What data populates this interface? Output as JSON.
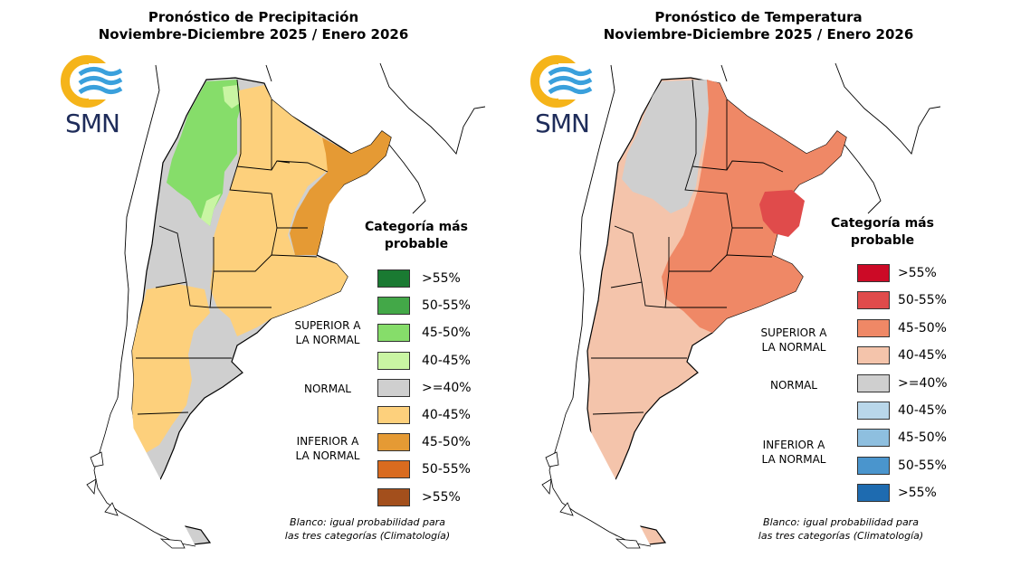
{
  "panels": [
    {
      "id": "precip",
      "title_line1": "Pronóstico de Precipitación",
      "title_line2": "Noviembre-Diciembre 2025 / Enero 2026",
      "logo_text": "SMN",
      "legend": {
        "title_line1": "Categoría más",
        "title_line2": "probable",
        "superior": [
          "SUPERIOR A",
          "LA NORMAL"
        ],
        "normal": "NORMAL",
        "inferior": [
          "INFERIOR A",
          "LA NORMAL"
        ],
        "items": [
          {
            "label": ">55%",
            "color": "#1a7a32"
          },
          {
            "label": "50-55%",
            "color": "#43a848"
          },
          {
            "label": "45-50%",
            "color": "#86dd6a"
          },
          {
            "label": "40-45%",
            "color": "#c9f5a3"
          },
          {
            "label": ">=40%",
            "color": "#cfcfcf"
          },
          {
            "label": "40-45%",
            "color": "#fdd07c"
          },
          {
            "label": "45-50%",
            "color": "#e59a34"
          },
          {
            "label": "50-55%",
            "color": "#d96b1f"
          },
          {
            "label": ">55%",
            "color": "#a34f1c"
          }
        ]
      },
      "note_line1": "Blanco: igual probabilidad para",
      "note_line2": "las tres categorías (Climatología)"
    },
    {
      "id": "temp",
      "title_line1": "Pronóstico de Temperatura",
      "title_line2": "Noviembre-Diciembre 2025 / Enero 2026",
      "logo_text": "SMN",
      "legend": {
        "title_line1": "Categoría más",
        "title_line2": "probable",
        "superior": [
          "SUPERIOR A",
          "LA NORMAL"
        ],
        "normal": "NORMAL",
        "inferior": [
          "INFERIOR A",
          "LA NORMAL"
        ],
        "items": [
          {
            "label": ">55%",
            "color": "#cc0a26"
          },
          {
            "label": "50-55%",
            "color": "#e04b4b"
          },
          {
            "label": "45-50%",
            "color": "#ef8866"
          },
          {
            "label": "40-45%",
            "color": "#f4c4ab"
          },
          {
            "label": ">=40%",
            "color": "#cfcfcf"
          },
          {
            "label": "40-45%",
            "color": "#b9d7ea"
          },
          {
            "label": "45-50%",
            "color": "#8ebfdf"
          },
          {
            "label": "50-55%",
            "color": "#4a95cd"
          },
          {
            "label": ">55%",
            "color": "#1e6bb0"
          }
        ]
      },
      "note_line1": "Blanco: igual probabilidad para",
      "note_line2": "las tres categorías (Climatología)"
    }
  ]
}
